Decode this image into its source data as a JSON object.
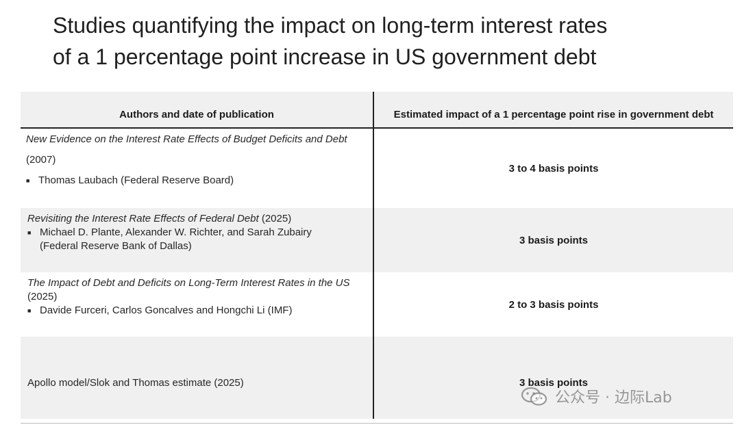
{
  "title": {
    "line1": "Studies quantifying the impact on long-term interest rates",
    "line2": "of a 1 percentage point increase in US government debt"
  },
  "table": {
    "headers": [
      "Authors and date of publication",
      "Estimated impact of a 1 percentage point rise in government debt"
    ],
    "rows": [
      {
        "study_title": "New Evidence on the Interest Rate Effects of Budget Deficits and Debt",
        "year": "(2007)",
        "authors": "Thomas Laubach (Federal Reserve Board)",
        "impact": "3 to 4 basis points"
      },
      {
        "study_title": "Revisiting the Interest Rate Effects of Federal Debt",
        "year": " (2025)",
        "authors_line1": "Michael D. Plante, Alexander W. Richter, and Sarah Zubairy",
        "authors_line2": "(Federal Reserve Bank of Dallas)",
        "impact": "3 basis points"
      },
      {
        "study_title": "The Impact of Debt and Deficits on Long-Term Interest Rates in the US",
        "year": "(2025)",
        "authors": "Davide Furceri, Carlos Goncalves and Hongchi Li (IMF)",
        "impact": "2 to 3 basis points"
      },
      {
        "study": "Apollo model/Slok and Thomas estimate (2025)",
        "impact": "3 basis points"
      }
    ]
  },
  "watermark": {
    "text": "公众号 · 边际Lab",
    "icon": "wechat-icon"
  }
}
